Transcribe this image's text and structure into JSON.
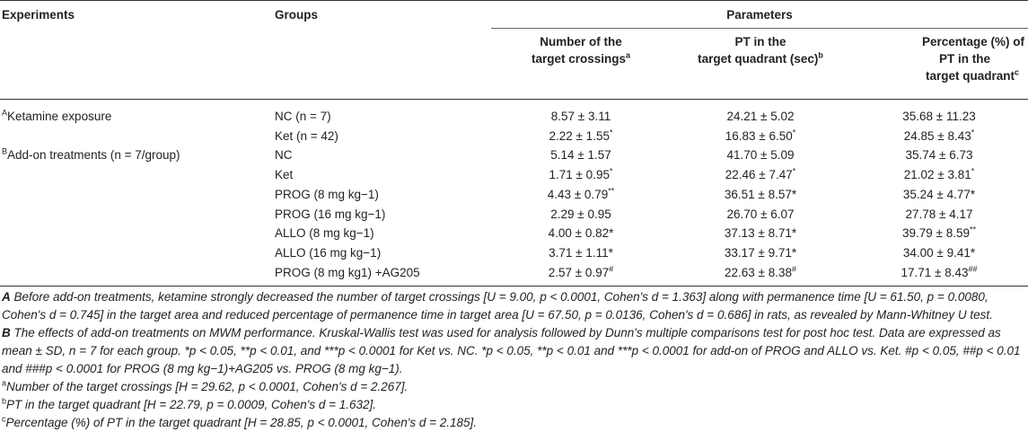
{
  "headers": {
    "experiments": "Experiments",
    "groups": "Groups",
    "parameters": "Parameters",
    "col1_line1": "Number of the",
    "col1_line2": "target crossings",
    "col1_sup": "a",
    "col2_line1": "PT in the",
    "col2_line2": "target quadrant (sec)",
    "col2_sup": "b",
    "col3_line1": "Percentage (%) of",
    "col3_line2": "PT in the",
    "col3_line3": "target quadrant",
    "col3_sup": "c"
  },
  "rows": [
    {
      "exp_sup": "A",
      "exp": "Ketamine exposure",
      "group": "NC (n = 7)",
      "c1": "8.57 ± 3.11",
      "c1s": "",
      "c2": "24.21 ± 5.02",
      "c2s": "",
      "c3": "35.68 ± 11.23",
      "c3s": ""
    },
    {
      "exp_sup": "",
      "exp": "",
      "group": "Ket (n = 42)",
      "c1": "2.22 ± 1.55",
      "c1s": "*",
      "c2": "16.83 ± 6.50",
      "c2s": "*",
      "c3": "24.85 ± 8.43",
      "c3s": "*"
    },
    {
      "exp_sup": "B",
      "exp": "Add-on treatments (n = 7/group)",
      "group": "NC",
      "c1": "5.14 ± 1.57",
      "c1s": "",
      "c2": "41.70 ± 5.09",
      "c2s": "",
      "c3": "35.74 ± 6.73",
      "c3s": ""
    },
    {
      "exp_sup": "",
      "exp": "",
      "group": "Ket",
      "c1": "1.71 ± 0.95",
      "c1s": "*",
      "c2": "22.46 ± 7.47",
      "c2s": "*",
      "c3": "21.02 ± 3.81",
      "c3s": "*"
    },
    {
      "exp_sup": "",
      "exp": "",
      "group": "PROG (8 mg kg−1)",
      "c1": "4.43 ± 0.79",
      "c1s": "**",
      "c2": "36.51 ± 8.57*",
      "c2s": "",
      "c3": "35.24 ± 4.77*",
      "c3s": ""
    },
    {
      "exp_sup": "",
      "exp": "",
      "group": "PROG (16 mg kg−1)",
      "c1": "2.29 ± 0.95",
      "c1s": "",
      "c2": "26.70 ± 6.07",
      "c2s": "",
      "c3": "27.78 ± 4.17",
      "c3s": ""
    },
    {
      "exp_sup": "",
      "exp": "",
      "group": "ALLO (8 mg kg−1)",
      "c1": "4.00 ± 0.82*",
      "c1s": "",
      "c2": "37.13 ± 8.71*",
      "c2s": "",
      "c3": "39.79 ± 8.59",
      "c3s": "**"
    },
    {
      "exp_sup": "",
      "exp": "",
      "group": "ALLO (16 mg kg−1)",
      "c1": "3.71 ± 1.11*",
      "c1s": "",
      "c2": "33.17 ± 9.71*",
      "c2s": "",
      "c3": "34.00 ± 9.41*",
      "c3s": ""
    },
    {
      "exp_sup": "",
      "exp": "",
      "group": "PROG (8 mg kg1) +AG205",
      "c1": "2.57 ± 0.97",
      "c1s": "#",
      "c2": "22.63 ± 8.38",
      "c2s": "#",
      "c3": "17.71 ± 8.43",
      "c3s": "##"
    }
  ],
  "notes": {
    "a_label": "A",
    "a_text": " Before add-on treatments, ketamine strongly decreased the number of target crossings [U = 9.00, p < 0.0001, Cohen's d = 1.363] along with permanence time [U = 61.50, p = 0.0080, Cohen's d = 0.745] in the target area and reduced percentage of permanence time in target area [U = 67.50, p = 0.0136, Cohen's d = 0.686] in rats, as revealed by Mann-Whitney U test.",
    "b_label": "B",
    "b_text": " The effects of add-on treatments on MWM performance. Kruskal-Wallis test was used for analysis followed by Dunn's multiple comparisons test for post hoc test. Data are expressed as mean ± SD, n = 7 for each group. *p < 0.05, **p < 0.01, and ***p < 0.0001 for Ket vs. NC. *p < 0.05, **p < 0.01 and ***p < 0.0001 for add-on of PROG and ALLO vs. Ket. #p < 0.05, ##p < 0.01 and ###p < 0.0001 for PROG (8 mg kg−1)+AG205 vs. PROG (8 mg kg−1).",
    "fa_sup": "a",
    "fa": "Number of the target crossings [H = 29.62, p < 0.0001, Cohen's d = 2.267].",
    "fb_sup": "b",
    "fb": "PT in the target quadrant [H = 22.79, p = 0.0009, Cohen's d = 1.632].",
    "fc_sup": "c",
    "fc": "Percentage (%) of PT in the target quadrant [H = 28.85, p < 0.0001, Cohen's d = 2.185]."
  }
}
